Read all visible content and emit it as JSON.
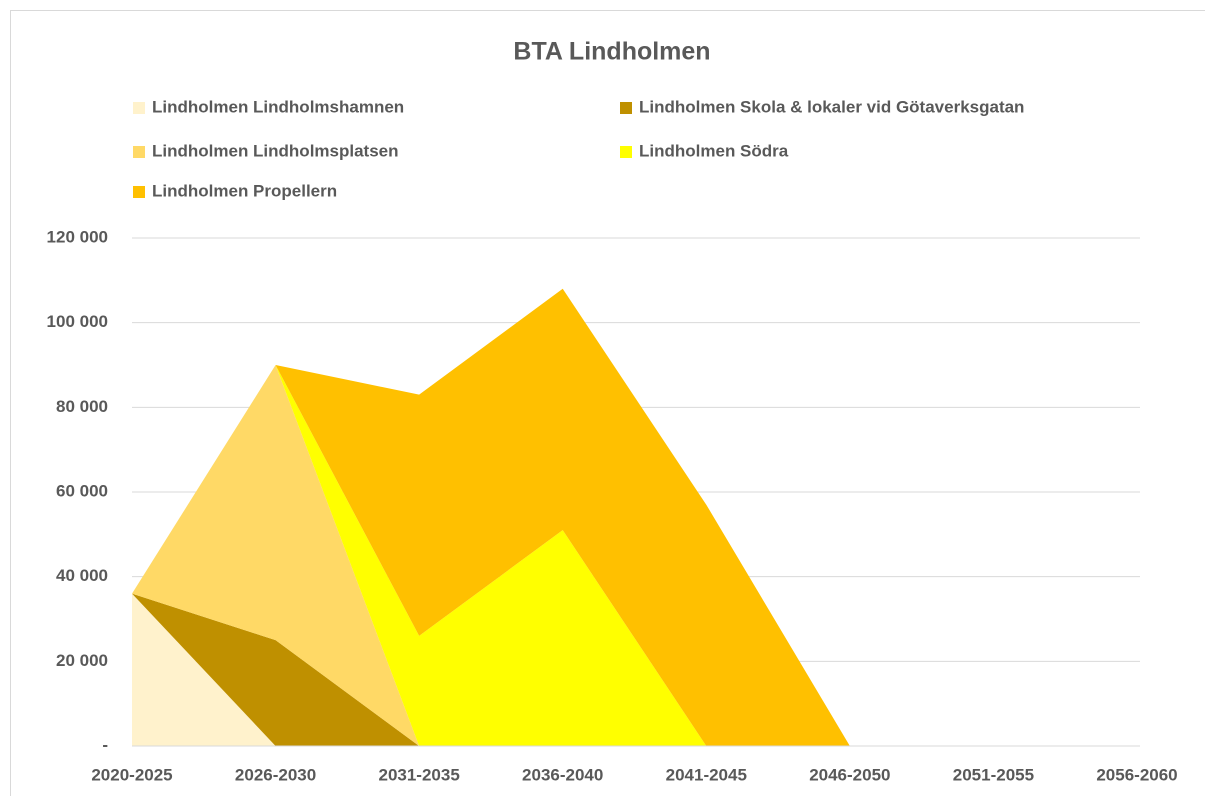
{
  "chart_data": {
    "type": "area",
    "stacked": true,
    "title": "BTA Lindholmen",
    "categories": [
      "2020-2025",
      "2026-2030",
      "2031-2035",
      "2036-2040",
      "2041-2045",
      "2046-2050",
      "2051-2055",
      "2056-2060"
    ],
    "series": [
      {
        "name": "Lindholmen Lindholmshamnen",
        "color": "#fff2cc",
        "values": [
          36000,
          0,
          0,
          0,
          0,
          0,
          0,
          0
        ]
      },
      {
        "name": "Lindholmen Skola & lokaler vid Götaverksgatan",
        "color": "#bf9000",
        "values": [
          0,
          25000,
          0,
          0,
          0,
          0,
          0,
          0
        ]
      },
      {
        "name": "Lindholmen Lindholmsplatsen",
        "color": "#ffd966",
        "values": [
          0,
          65000,
          0,
          0,
          0,
          0,
          0,
          0
        ]
      },
      {
        "name": "Lindholmen Södra",
        "color": "#ffff00",
        "values": [
          0,
          0,
          26000,
          51000,
          0,
          0,
          0,
          0
        ]
      },
      {
        "name": "Lindholmen Propellern",
        "color": "#ffc000",
        "values": [
          0,
          0,
          57000,
          57000,
          57000,
          0,
          0,
          0
        ]
      }
    ],
    "ylim": [
      0,
      120000
    ],
    "yticks": [
      {
        "value": 0,
        "label": "-"
      },
      {
        "value": 20000,
        "label": "20 000"
      },
      {
        "value": 40000,
        "label": "40 000"
      },
      {
        "value": 60000,
        "label": "60 000"
      },
      {
        "value": 80000,
        "label": "80 000"
      },
      {
        "value": 100000,
        "label": "100 000"
      },
      {
        "value": 120000,
        "label": "120 000"
      }
    ],
    "grid": true
  }
}
